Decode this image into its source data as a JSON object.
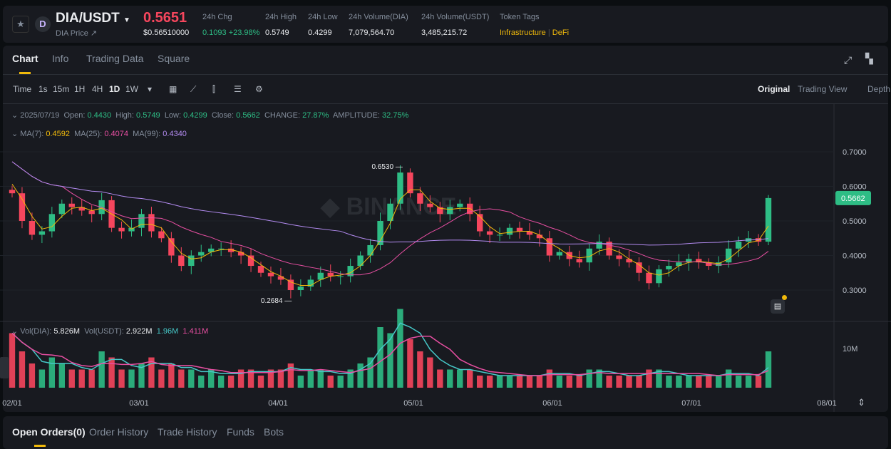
{
  "header": {
    "symbol": "DIA/USDT",
    "subtitle": "DIA Price ↗",
    "price": "0.5651",
    "price_usd": "$0.56510000",
    "stats": [
      {
        "label": "24h Chg",
        "value": "0.1093 +23.98%",
        "color": "#2ebd85"
      },
      {
        "label": "24h High",
        "value": "0.5749"
      },
      {
        "label": "24h Low",
        "value": "0.4299"
      },
      {
        "label": "24h Volume(DIA)",
        "value": "7,079,564.70"
      },
      {
        "label": "24h Volume(USDT)",
        "value": "3,485,215.72"
      }
    ],
    "token_tags_label": "Token Tags",
    "tags": [
      "Infrastructure",
      "DeFi"
    ],
    "tag_sep": "|"
  },
  "tabs": [
    "Chart",
    "Info",
    "Trading Data",
    "Square"
  ],
  "intervals": [
    "Time",
    "1s",
    "15m",
    "1H",
    "4H",
    "1D",
    "1W"
  ],
  "views": [
    "Original",
    "Trading View",
    "Depth"
  ],
  "ohlc": {
    "date": "2025/07/19",
    "open_label": "Open:",
    "open": "0.4430",
    "high_label": "High:",
    "high": "0.5749",
    "low_label": "Low:",
    "low": "0.4299",
    "close_label": "Close:",
    "close": "0.5662",
    "change_label": "CHANGE:",
    "change": "27.87%",
    "amp_label": "AMPLITUDE:",
    "amp": "32.75%"
  },
  "ma": {
    "ma7_label": "MA(7):",
    "ma7": "0.4592",
    "ma25_label": "MA(25):",
    "ma25": "0.4074",
    "ma99_label": "MA(99):",
    "ma99": "0.4340"
  },
  "vol": {
    "label1": "Vol(DIA):",
    "v1": "5.826M",
    "label2": "Vol(USDT):",
    "v2": "2.922M",
    "v3": "1.96M",
    "v4": "1.411M"
  },
  "watermark": "BINANCE",
  "colors": {
    "up": "#2ebd85",
    "down": "#f6465d",
    "ma7": "#f0b90b",
    "ma25": "#e84fa2",
    "ma99": "#b48cf2",
    "vol_ma": "#46c8c8"
  },
  "chart_data": {
    "type": "candlestick",
    "price_ticks": [
      "0.7000",
      "0.6000",
      "0.5000",
      "0.4000",
      "0.3000"
    ],
    "volume_ticks": [
      "10M"
    ],
    "x_ticks": [
      "02/01",
      "03/01",
      "04/01",
      "05/01",
      "06/01",
      "07/01",
      "08/01"
    ],
    "last_price": "0.5662",
    "max_label": "0.6530",
    "min_label": "0.2684",
    "closes": [
      0.58,
      0.5,
      0.46,
      0.47,
      0.52,
      0.55,
      0.54,
      0.53,
      0.52,
      0.56,
      0.48,
      0.47,
      0.48,
      0.52,
      0.47,
      0.45,
      0.4,
      0.37,
      0.4,
      0.41,
      0.42,
      0.42,
      0.41,
      0.4,
      0.37,
      0.35,
      0.34,
      0.33,
      0.3,
      0.31,
      0.33,
      0.35,
      0.34,
      0.34,
      0.37,
      0.4,
      0.43,
      0.5,
      0.55,
      0.64,
      0.58,
      0.55,
      0.54,
      0.52,
      0.54,
      0.55,
      0.52,
      0.47,
      0.46,
      0.46,
      0.48,
      0.47,
      0.46,
      0.45,
      0.4,
      0.41,
      0.39,
      0.38,
      0.42,
      0.44,
      0.4,
      0.39,
      0.38,
      0.35,
      0.32,
      0.36,
      0.37,
      0.38,
      0.39,
      0.38,
      0.37,
      0.38,
      0.42,
      0.44,
      0.45,
      0.44,
      0.5662
    ],
    "volumes_m": [
      9,
      6,
      4,
      3,
      5,
      4,
      3,
      3,
      3,
      6,
      5,
      3,
      3,
      4,
      5,
      3,
      4,
      3,
      3,
      2,
      3,
      2,
      2,
      3,
      3,
      2,
      3,
      3,
      4,
      2,
      3,
      3,
      2,
      2,
      3,
      4,
      5,
      10,
      9,
      13,
      8,
      6,
      5,
      3,
      3,
      3,
      3,
      2,
      2,
      2,
      2,
      2,
      2,
      2,
      3,
      2,
      2,
      2,
      3,
      3,
      2,
      2,
      2,
      2,
      3,
      3,
      2,
      2,
      2,
      2,
      2,
      2,
      3,
      2,
      2,
      2,
      6
    ]
  },
  "bottom_tabs": [
    "Open Orders(0)",
    "Order History",
    "Trade History",
    "Funds",
    "Bots"
  ]
}
